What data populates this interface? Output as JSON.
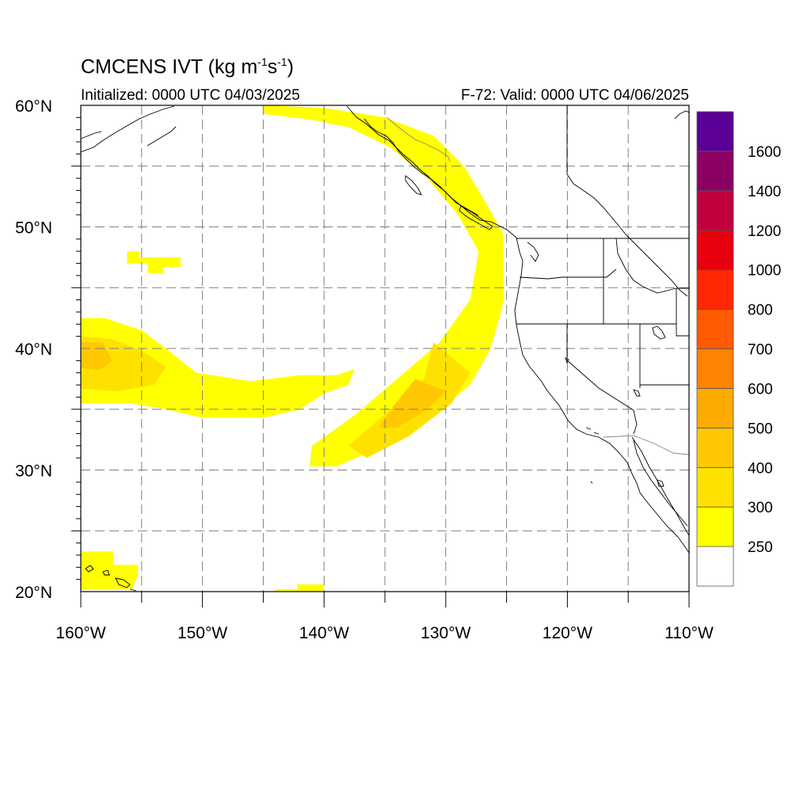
{
  "title": {
    "main": "CMCENS IVT (kg m",
    "exp1": "-1",
    "mid": "s",
    "exp2": "-1",
    "close": ")"
  },
  "subtitle": {
    "initialized": "Initialized: 0000 UTC 04/03/2025",
    "valid": "F-72: Valid: 0000 UTC 04/06/2025"
  },
  "axes": {
    "lat_ticks": [
      {
        "value": 60,
        "label": "60°N"
      },
      {
        "value": 50,
        "label": "50°N"
      },
      {
        "value": 40,
        "label": "40°N"
      },
      {
        "value": 30,
        "label": "30°N"
      },
      {
        "value": 20,
        "label": "20°N"
      }
    ],
    "lon_ticks": [
      {
        "value": -160,
        "label": "160°W"
      },
      {
        "value": -150,
        "label": "150°W"
      },
      {
        "value": -140,
        "label": "140°W"
      },
      {
        "value": -130,
        "label": "130°W"
      },
      {
        "value": -120,
        "label": "120°W"
      },
      {
        "value": -110,
        "label": "110°W"
      }
    ],
    "lon_range": [
      -160,
      -110
    ],
    "lat_range": [
      20,
      60
    ],
    "grid_step_deg": 5,
    "grid": "dashed"
  },
  "colorbar": {
    "labels": [
      "250",
      "300",
      "400",
      "500",
      "600",
      "700",
      "800",
      "1000",
      "1200",
      "1400",
      "1600"
    ],
    "colors": [
      "#ffffff",
      "#ffff00",
      "#ffe100",
      "#ffc800",
      "#ffaa00",
      "#ff8200",
      "#ff5a00",
      "#ff2800",
      "#e80010",
      "#c0003c",
      "#8c0064",
      "#5a0096"
    ]
  },
  "map": {
    "projection": "cylindrical equidistant",
    "features": [
      "coastlines",
      "US state borders",
      "Canada-US border",
      "Mexico-US border"
    ],
    "fill_colors": {
      "light": "#ffff00",
      "medium": "#ffe100",
      "strong": "#ffc800",
      "peak": "#ffb400"
    }
  },
  "chart_data": {
    "type": "heatmap",
    "variable": "IVT",
    "units": "kg m-1 s-1",
    "levels": [
      250,
      300,
      400,
      500,
      600,
      700,
      800,
      1000,
      1200,
      1400,
      1600
    ],
    "regions": [
      {
        "name": "atmospheric-river-northeast-pacific",
        "class": "light",
        "polygon": [
          [
            -145,
            60
          ],
          [
            -140,
            59.8
          ],
          [
            -135,
            59
          ],
          [
            -131,
            57.5
          ],
          [
            -128.5,
            55
          ],
          [
            -127,
            52.5
          ],
          [
            -125.3,
            49.5
          ],
          [
            -125.2,
            44
          ],
          [
            -126.3,
            40
          ],
          [
            -128,
            37
          ],
          [
            -131,
            34.5
          ],
          [
            -135,
            32
          ],
          [
            -139,
            30.3
          ],
          [
            -141.2,
            30.3
          ],
          [
            -141,
            32
          ],
          [
            -137.5,
            34.5
          ],
          [
            -134,
            37.5
          ],
          [
            -130.5,
            40.5
          ],
          [
            -128,
            44
          ],
          [
            -127.3,
            48
          ],
          [
            -129,
            51
          ],
          [
            -131.5,
            54
          ],
          [
            -134.5,
            56.5
          ],
          [
            -138,
            58.2
          ],
          [
            -141,
            58.8
          ],
          [
            -145,
            59.3
          ]
        ]
      },
      {
        "name": "atmospheric-river-core",
        "class": "medium",
        "polygon": [
          [
            -131,
            40.5
          ],
          [
            -128,
            38
          ],
          [
            -129.5,
            35.5
          ],
          [
            -133,
            32.8
          ],
          [
            -136.5,
            31
          ],
          [
            -138,
            32
          ],
          [
            -134.5,
            35
          ],
          [
            -131.8,
            37.5
          ]
        ]
      },
      {
        "name": "atmospheric-river-peak",
        "class": "strong",
        "polygon": [
          [
            -132.5,
            37.5
          ],
          [
            -130,
            36.5
          ],
          [
            -131.5,
            35
          ],
          [
            -134,
            33.5
          ],
          [
            -135.5,
            33.5
          ],
          [
            -134.5,
            35
          ]
        ]
      },
      {
        "name": "subtropical-plume-west",
        "class": "light",
        "polygon": [
          [
            -160,
            42.5
          ],
          [
            -158,
            42.5
          ],
          [
            -155,
            41.5
          ],
          [
            -153,
            40
          ],
          [
            -150.5,
            38
          ],
          [
            -146,
            37.3
          ],
          [
            -142,
            37.8
          ],
          [
            -139,
            37.8
          ],
          [
            -137.5,
            38.3
          ],
          [
            -138,
            37
          ],
          [
            -140,
            36.3
          ],
          [
            -142,
            35
          ],
          [
            -145,
            34.3
          ],
          [
            -150,
            34.3
          ],
          [
            -153,
            35
          ],
          [
            -156,
            35.5
          ],
          [
            -160,
            35.5
          ]
        ]
      },
      {
        "name": "subtropical-plume-core",
        "class": "medium",
        "polygon": [
          [
            -160,
            41
          ],
          [
            -157.5,
            40.8
          ],
          [
            -155,
            39.8
          ],
          [
            -153,
            38.5
          ],
          [
            -154,
            37
          ],
          [
            -157,
            36.5
          ],
          [
            -160,
            36.7
          ]
        ]
      },
      {
        "name": "subtropical-plume-peak",
        "class": "strong",
        "polygon": [
          [
            -160,
            40.5
          ],
          [
            -158.2,
            40.5
          ],
          [
            -157.4,
            39
          ],
          [
            -158.5,
            38.2
          ],
          [
            -160,
            38.4
          ]
        ]
      },
      {
        "name": "patch-46n-155w",
        "class": "light",
        "polygon": [
          [
            -156.2,
            48
          ],
          [
            -155.2,
            48
          ],
          [
            -155.2,
            47.5
          ],
          [
            -151.8,
            47.5
          ],
          [
            -151.8,
            46.7
          ],
          [
            -153.2,
            46.7
          ],
          [
            -153.2,
            46.2
          ],
          [
            -154.5,
            46.2
          ],
          [
            -154.5,
            47
          ],
          [
            -156.2,
            47
          ]
        ]
      },
      {
        "name": "patch-hawaii",
        "class": "light",
        "polygon": [
          [
            -160,
            23.3
          ],
          [
            -157.3,
            23.3
          ],
          [
            -157.3,
            22.2
          ],
          [
            -155.3,
            22.2
          ],
          [
            -155.3,
            21.3
          ],
          [
            -155.8,
            20.2
          ],
          [
            -160,
            20.2
          ]
        ]
      },
      {
        "name": "patch-20n-142w",
        "class": "light",
        "polygon": [
          [
            -144,
            20
          ],
          [
            -144,
            20.2
          ],
          [
            -142.2,
            20.2
          ],
          [
            -142.2,
            20.6
          ],
          [
            -140,
            20.6
          ],
          [
            -140,
            20
          ]
        ]
      }
    ]
  }
}
